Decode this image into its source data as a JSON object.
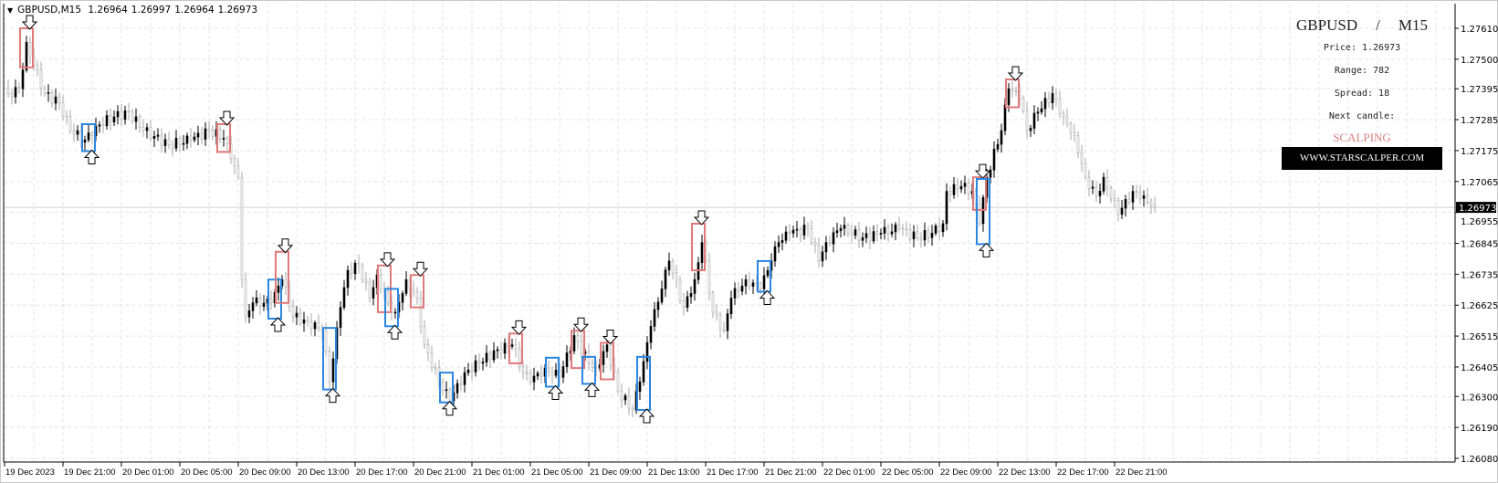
{
  "header": {
    "symbol_timeframe": "GBPUSD,M15",
    "ohlc": [
      "1.26964",
      "1.26997",
      "1.26964",
      "1.26973"
    ]
  },
  "info_panel": {
    "symbol": "GBPUSD",
    "separator": "/",
    "timeframe": "M15",
    "price": "Price: 1.26973",
    "range": "Range: 782",
    "spread": "Spread: 18",
    "next_candle": "Next candle:",
    "signal_text": "SCALPING",
    "website": "WWW.STARSCALPER.COM"
  },
  "colors": {
    "bull": "#000000",
    "bear": "#a8a8a8",
    "sell_box": "#e07a7a",
    "buy_box": "#2a86e0",
    "grid": "#e4e4e4",
    "scalping_text": "#d98080"
  },
  "chart_data": {
    "type": "candlestick",
    "symbol": "GBPUSD",
    "timeframe": "M15",
    "current_price": 1.26973,
    "y_ticks": [
      "1.27610",
      "1.27500",
      "1.27395",
      "1.27285",
      "1.27175",
      "1.27065",
      "1.26955",
      "1.26845",
      "1.26735",
      "1.26625",
      "1.26515",
      "1.26405",
      "1.26300",
      "1.26190",
      "1.26080"
    ],
    "ylim": [
      1.2607,
      1.2769
    ],
    "x_ticks": [
      "19 Dec 2023",
      "19 Dec 21:00",
      "20 Dec 01:00",
      "20 Dec 05:00",
      "20 Dec 09:00",
      "20 Dec 13:00",
      "20 Dec 17:00",
      "20 Dec 21:00",
      "21 Dec 01:00",
      "21 Dec 05:00",
      "21 Dec 09:00",
      "21 Dec 13:00",
      "21 Dec 17:00",
      "21 Dec 21:00",
      "22 Dec 01:00",
      "22 Dec 05:00",
      "22 Dec 09:00",
      "22 Dec 13:00",
      "22 Dec 17:00",
      "22 Dec 21:00"
    ],
    "grid": true,
    "close_path": [
      [
        "19 Dec 17:15",
        1.27378
      ],
      [
        "19 Dec 18:00",
        1.27395
      ],
      [
        "19 Dec 18:30",
        1.2756
      ],
      [
        "19 Dec 19:00",
        1.27478
      ],
      [
        "19 Dec 19:45",
        1.27378
      ],
      [
        "19 Dec 20:45",
        1.27345
      ],
      [
        "19 Dec 21:30",
        1.27246
      ],
      [
        "19 Dec 22:30",
        1.27213
      ],
      [
        "19 Dec 23:15",
        1.27262
      ],
      [
        "20 Dec 00:30",
        1.27295
      ],
      [
        "20 Dec 01:30",
        1.27312
      ],
      [
        "20 Dec 02:30",
        1.27246
      ],
      [
        "20 Dec 04:15",
        1.27196
      ],
      [
        "20 Dec 05:45",
        1.27213
      ],
      [
        "20 Dec 07:00",
        1.27246
      ],
      [
        "20 Dec 08:00",
        1.27219
      ],
      [
        "20 Dec 08:30",
        1.27146
      ],
      [
        "20 Dec 09:00",
        1.2708
      ],
      [
        "20 Dec 09:15",
        1.26716
      ],
      [
        "20 Dec 09:30",
        1.26583
      ],
      [
        "20 Dec 10:00",
        1.26633
      ],
      [
        "20 Dec 11:15",
        1.26633
      ],
      [
        "20 Dec 12:00",
        1.26716
      ],
      [
        "20 Dec 12:45",
        1.26583
      ],
      [
        "20 Dec 13:45",
        1.26567
      ],
      [
        "20 Dec 14:45",
        1.26534
      ],
      [
        "20 Dec 15:15",
        1.26352
      ],
      [
        "20 Dec 16:00",
        1.26617
      ],
      [
        "20 Dec 16:30",
        1.26749
      ],
      [
        "20 Dec 17:15",
        1.26766
      ],
      [
        "20 Dec 18:00",
        1.2665
      ],
      [
        "20 Dec 18:30",
        1.26732
      ],
      [
        "20 Dec 19:15",
        1.26633
      ],
      [
        "20 Dec 19:45",
        1.266
      ],
      [
        "20 Dec 20:30",
        1.26716
      ],
      [
        "20 Dec 21:15",
        1.2665
      ],
      [
        "20 Dec 21:45",
        1.26484
      ],
      [
        "20 Dec 22:45",
        1.26352
      ],
      [
        "20 Dec 23:30",
        1.26285
      ],
      [
        "21 Dec 00:30",
        1.26385
      ],
      [
        "21 Dec 01:30",
        1.26418
      ],
      [
        "21 Dec 02:45",
        1.26467
      ],
      [
        "21 Dec 03:45",
        1.26484
      ],
      [
        "21 Dec 04:30",
        1.26385
      ],
      [
        "21 Dec 05:00",
        1.26352
      ],
      [
        "21 Dec 06:00",
        1.26401
      ],
      [
        "21 Dec 07:00",
        1.26368
      ],
      [
        "21 Dec 08:00",
        1.26517
      ],
      [
        "21 Dec 09:00",
        1.26418
      ],
      [
        "21 Dec 09:30",
        1.26401
      ],
      [
        "21 Dec 10:15",
        1.26484
      ],
      [
        "21 Dec 11:00",
        1.26318
      ],
      [
        "21 Dec 12:00",
        1.26252
      ],
      [
        "21 Dec 12:30",
        1.26352
      ],
      [
        "21 Dec 13:15",
        1.2655
      ],
      [
        "21 Dec 14:00",
        1.26683
      ],
      [
        "21 Dec 14:30",
        1.26782
      ],
      [
        "21 Dec 15:30",
        1.26617
      ],
      [
        "21 Dec 16:15",
        1.26716
      ],
      [
        "21 Dec 16:45",
        1.26848
      ],
      [
        "21 Dec 17:30",
        1.266
      ],
      [
        "21 Dec 18:15",
        1.26534
      ],
      [
        "21 Dec 18:45",
        1.2665
      ],
      [
        "21 Dec 19:45",
        1.26716
      ],
      [
        "21 Dec 20:45",
        1.26683
      ],
      [
        "21 Dec 21:30",
        1.26782
      ],
      [
        "21 Dec 22:00",
        1.26848
      ],
      [
        "21 Dec 22:45",
        1.26881
      ],
      [
        "22 Dec 00:00",
        1.26898
      ],
      [
        "22 Dec 00:45",
        1.26782
      ],
      [
        "22 Dec 01:15",
        1.26848
      ],
      [
        "22 Dec 02:15",
        1.26898
      ],
      [
        "22 Dec 03:45",
        1.26865
      ],
      [
        "22 Dec 05:00",
        1.26881
      ],
      [
        "22 Dec 06:15",
        1.26898
      ],
      [
        "22 Dec 07:30",
        1.26865
      ],
      [
        "22 Dec 08:30",
        1.26881
      ],
      [
        "22 Dec 09:15",
        1.26915
      ],
      [
        "22 Dec 09:30",
        1.2703
      ],
      [
        "22 Dec 10:30",
        1.27047
      ],
      [
        "22 Dec 11:15",
        1.2703
      ],
      [
        "22 Dec 11:45",
        1.26915
      ],
      [
        "22 Dec 12:15",
        1.2708
      ],
      [
        "22 Dec 13:15",
        1.27246
      ],
      [
        "22 Dec 13:45",
        1.27395
      ],
      [
        "22 Dec 14:30",
        1.27362
      ],
      [
        "22 Dec 15:00",
        1.27246
      ],
      [
        "22 Dec 15:45",
        1.27312
      ],
      [
        "22 Dec 16:45",
        1.27378
      ],
      [
        "22 Dec 17:30",
        1.27295
      ],
      [
        "22 Dec 18:15",
        1.27229
      ],
      [
        "22 Dec 19:00",
        1.2708
      ],
      [
        "22 Dec 19:45",
        1.27014
      ],
      [
        "22 Dec 20:15",
        1.2708
      ],
      [
        "22 Dec 21:15",
        1.26948
      ],
      [
        "22 Dec 22:15",
        1.2703
      ],
      [
        "22 Dec 23:00",
        1.27014
      ],
      [
        "22 Dec 23:45",
        1.26973
      ]
    ],
    "signals": [
      {
        "type": "sell",
        "time": "19 Dec 18:30",
        "high": 1.2761,
        "low": 1.27471
      },
      {
        "type": "buy",
        "time": "19 Dec 22:45",
        "high": 1.27269,
        "low": 1.27173
      },
      {
        "type": "sell",
        "time": "20 Dec 08:00",
        "high": 1.27269,
        "low": 1.2717
      },
      {
        "type": "buy",
        "time": "20 Dec 11:30",
        "high": 1.26716,
        "low": 1.26577
      },
      {
        "type": "sell",
        "time": "20 Dec 12:00",
        "high": 1.26815,
        "low": 1.26633
      },
      {
        "type": "buy",
        "time": "20 Dec 15:15",
        "high": 1.26544,
        "low": 1.26325
      },
      {
        "type": "sell",
        "time": "20 Dec 19:00",
        "high": 1.26766,
        "low": 1.266
      },
      {
        "type": "buy",
        "time": "20 Dec 19:30",
        "high": 1.26683,
        "low": 1.2655
      },
      {
        "type": "sell",
        "time": "20 Dec 21:15",
        "high": 1.26732,
        "low": 1.26617
      },
      {
        "type": "buy",
        "time": "20 Dec 23:15",
        "high": 1.26385,
        "low": 1.26279
      },
      {
        "type": "sell",
        "time": "21 Dec 04:00",
        "high": 1.26524,
        "low": 1.26418
      },
      {
        "type": "buy",
        "time": "21 Dec 06:30",
        "high": 1.26438,
        "low": 1.26335
      },
      {
        "type": "sell",
        "time": "21 Dec 08:15",
        "high": 1.26534,
        "low": 1.26401
      },
      {
        "type": "buy",
        "time": "21 Dec 09:00",
        "high": 1.26441,
        "low": 1.26345
      },
      {
        "type": "sell",
        "time": "21 Dec 10:15",
        "high": 1.26491,
        "low": 1.26361
      },
      {
        "type": "buy",
        "time": "21 Dec 12:45",
        "high": 1.26441,
        "low": 1.26252
      },
      {
        "type": "sell",
        "time": "21 Dec 16:30",
        "high": 1.26915,
        "low": 1.26749
      },
      {
        "type": "buy",
        "time": "21 Dec 21:00",
        "high": 1.26782,
        "low": 1.26673
      },
      {
        "type": "sell",
        "time": "22 Dec 11:45",
        "high": 1.2708,
        "low": 1.26964
      },
      {
        "type": "buy",
        "time": "22 Dec 12:00",
        "high": 1.27074,
        "low": 1.26842
      },
      {
        "type": "sell",
        "time": "22 Dec 14:00",
        "high": 1.27428,
        "low": 1.27329
      }
    ]
  }
}
